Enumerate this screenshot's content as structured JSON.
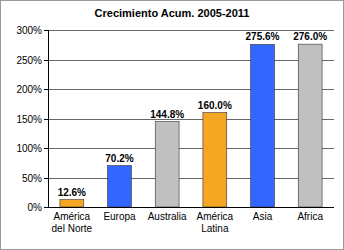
{
  "chart_data": {
    "type": "bar",
    "title": "Crecimiento Acum. 2005-2011",
    "categories": [
      "América del Norte",
      "Europa",
      "Australia",
      "América Latina",
      "Asia",
      "Africa"
    ],
    "values": [
      12.6,
      70.2,
      144.8,
      160.0,
      275.6,
      276.0
    ],
    "value_labels": [
      "12.6%",
      "70.2%",
      "144.8%",
      "160.0%",
      "275.6%",
      "276.0%"
    ],
    "colors": [
      "#f5a623",
      "#3366ff",
      "#c0c0c0",
      "#f5a623",
      "#3366ff",
      "#c0c0c0"
    ],
    "ylim": [
      0,
      300
    ],
    "yticks": [
      {
        "value": 0,
        "label": "0%"
      },
      {
        "value": 50,
        "label": "50%"
      },
      {
        "value": 100,
        "label": "100%"
      },
      {
        "value": 150,
        "label": "150%"
      },
      {
        "value": 200,
        "label": "200%"
      },
      {
        "value": 250,
        "label": "250%"
      },
      {
        "value": 300,
        "label": "300%"
      }
    ],
    "grid": true,
    "data_labels": true
  }
}
